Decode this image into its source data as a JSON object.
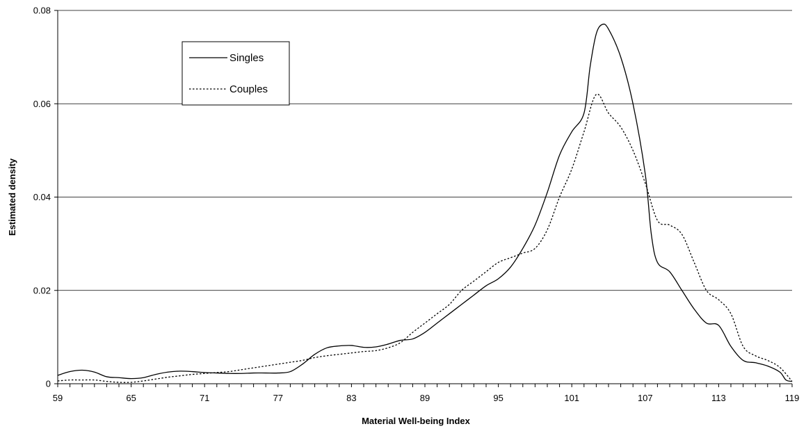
{
  "chart_data": {
    "type": "line",
    "title": "",
    "xlabel": "Material Well-being Index",
    "ylabel": "Estimated density",
    "xlim": [
      59,
      119
    ],
    "ylim": [
      0,
      0.08
    ],
    "x_ticks": [
      "59",
      "65",
      "71",
      "77",
      "83",
      "89",
      "95",
      "101",
      "107",
      "113",
      "119"
    ],
    "y_ticks": [
      "0",
      "0.02",
      "0.04",
      "0.06",
      "0.08"
    ],
    "grid": "horizontal",
    "legend_position": "top-left",
    "series": [
      {
        "name": "Singles",
        "style": "solid",
        "color": "#000000",
        "x": [
          59,
          60,
          61,
          62,
          63,
          64,
          65,
          66,
          67,
          68,
          69,
          70,
          71,
          72,
          73,
          74,
          75,
          76,
          77,
          78,
          79,
          80,
          81,
          82,
          83,
          84,
          85,
          86,
          87,
          88,
          89,
          90,
          91,
          92,
          93,
          94,
          95,
          96,
          97,
          98,
          99,
          100,
          101,
          102,
          102.5,
          103,
          103.5,
          104,
          105,
          106,
          107,
          107.5,
          108,
          109,
          110,
          111,
          112,
          113,
          114,
          115,
          116,
          117,
          118,
          118.5,
          119
        ],
        "values": [
          0.0018,
          0.0026,
          0.0029,
          0.0025,
          0.0015,
          0.0013,
          0.0011,
          0.0013,
          0.002,
          0.0025,
          0.0027,
          0.0026,
          0.0024,
          0.0023,
          0.0022,
          0.0022,
          0.0023,
          0.0023,
          0.0023,
          0.0026,
          0.0042,
          0.0063,
          0.0077,
          0.0081,
          0.0082,
          0.0078,
          0.0079,
          0.0085,
          0.0093,
          0.0096,
          0.011,
          0.013,
          0.015,
          0.017,
          0.019,
          0.021,
          0.0225,
          0.025,
          0.029,
          0.034,
          0.041,
          0.049,
          0.054,
          0.058,
          0.068,
          0.075,
          0.077,
          0.076,
          0.07,
          0.06,
          0.045,
          0.032,
          0.026,
          0.024,
          0.02,
          0.016,
          0.013,
          0.0125,
          0.008,
          0.005,
          0.0045,
          0.0038,
          0.0025,
          0.0008,
          0.0005
        ]
      },
      {
        "name": "Couples",
        "style": "dotted",
        "color": "#000000",
        "x": [
          59,
          60,
          61,
          62,
          63,
          64,
          65,
          66,
          67,
          68,
          69,
          70,
          71,
          72,
          73,
          74,
          75,
          76,
          77,
          78,
          79,
          80,
          81,
          82,
          83,
          84,
          85,
          86,
          87,
          88,
          89,
          90,
          91,
          92,
          93,
          94,
          95,
          96,
          97,
          98,
          99,
          100,
          101,
          102,
          103,
          104,
          105,
          106,
          107,
          108,
          109,
          110,
          111,
          112,
          113,
          114,
          115,
          116,
          117,
          118,
          119
        ],
        "values": [
          0.0006,
          0.0008,
          0.0008,
          0.0008,
          0.0005,
          0.0003,
          0.0003,
          0.0006,
          0.001,
          0.0014,
          0.0017,
          0.002,
          0.0022,
          0.0024,
          0.0026,
          0.003,
          0.0034,
          0.0038,
          0.0042,
          0.0046,
          0.005,
          0.0056,
          0.006,
          0.0063,
          0.0066,
          0.0069,
          0.0071,
          0.0077,
          0.0088,
          0.011,
          0.013,
          0.015,
          0.017,
          0.02,
          0.022,
          0.024,
          0.026,
          0.027,
          0.028,
          0.029,
          0.033,
          0.04,
          0.046,
          0.054,
          0.062,
          0.058,
          0.055,
          0.05,
          0.043,
          0.035,
          0.034,
          0.032,
          0.026,
          0.02,
          0.018,
          0.015,
          0.008,
          0.006,
          0.005,
          0.0035,
          0.0005
        ]
      }
    ]
  }
}
